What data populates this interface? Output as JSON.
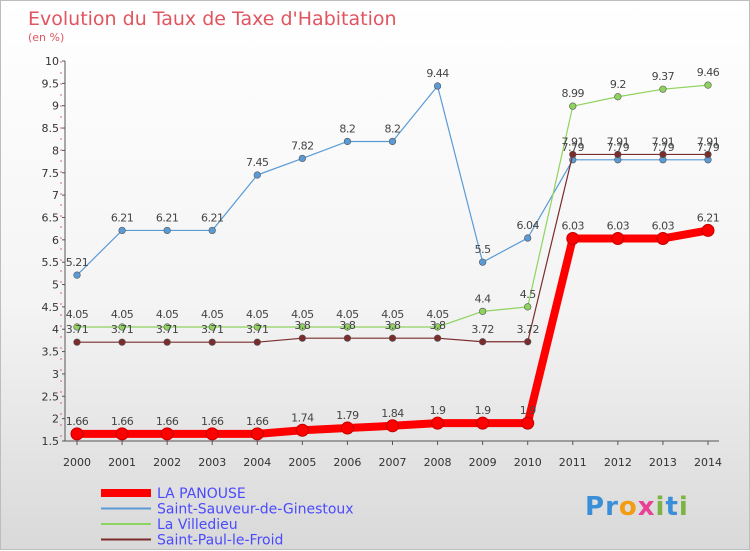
{
  "chart_data": {
    "type": "line",
    "title": "Evolution du Taux de Taxe d'Habitation",
    "subtitle": "(en %)",
    "x": [
      "2000",
      "2001",
      "2002",
      "2003",
      "2004",
      "2005",
      "2006",
      "2007",
      "2008",
      "2009",
      "2010",
      "2011",
      "2012",
      "2013",
      "2014"
    ],
    "ylim": [
      1.5,
      10
    ],
    "yticks": [
      "1.5",
      "2",
      "2.5",
      "3",
      "3.5",
      "4",
      "4.5",
      "5",
      "5.5",
      "6",
      "6.5",
      "7",
      "7.5",
      "8",
      "8.5",
      "9",
      "9.5",
      "10"
    ],
    "grid": false,
    "legend_position": "bottom-left",
    "series": [
      {
        "name": "LA PANOUSE",
        "color": "#ff0000",
        "values": [
          1.66,
          1.66,
          1.66,
          1.66,
          1.66,
          1.74,
          1.79,
          1.84,
          1.9,
          1.9,
          1.9,
          6.03,
          6.03,
          6.03,
          6.21
        ],
        "labels": [
          "1.66",
          "1.66",
          "1.66",
          "1.66",
          "1.66",
          "1.74",
          "1.79",
          "1.84",
          "1.9",
          "1.9",
          "1.9",
          "6.03",
          "6.03",
          "6.03",
          "6.21"
        ]
      },
      {
        "name": "Saint-Sauveur-de-Ginestoux",
        "color": "#5b9bd5",
        "values": [
          5.21,
          6.21,
          6.21,
          6.21,
          7.45,
          7.82,
          8.2,
          8.2,
          9.44,
          5.5,
          6.04,
          7.79,
          7.79,
          7.79,
          7.79
        ],
        "labels": [
          "5.21",
          "6.21",
          "6.21",
          "6.21",
          "7.45",
          "7.82",
          "8.2",
          "8.2",
          "9.44",
          "5.5",
          "6.04",
          "7.79",
          "7.79",
          "7.79",
          "7.79"
        ]
      },
      {
        "name": "La Villedieu",
        "color": "#8fd35f",
        "values": [
          4.05,
          4.05,
          4.05,
          4.05,
          4.05,
          4.05,
          4.05,
          4.05,
          4.05,
          4.4,
          4.5,
          8.99,
          9.2,
          9.37,
          9.46
        ],
        "labels": [
          "4.05",
          "4.05",
          "4.05",
          "4.05",
          "4.05",
          "4.05",
          "4.05",
          "4.05",
          "4.05",
          "4.4",
          "4.5",
          "8.99",
          "9.2",
          "9.37",
          "9.46"
        ]
      },
      {
        "name": "Saint-Paul-le-Froid",
        "color": "#7b2d2d",
        "values": [
          3.71,
          3.71,
          3.71,
          3.71,
          3.71,
          3.8,
          3.8,
          3.8,
          3.8,
          3.72,
          3.72,
          7.91,
          7.91,
          7.91,
          7.91
        ],
        "labels": [
          "3.71",
          "3.71",
          "3.71",
          "3.71",
          "3.71",
          "3.8",
          "3.8",
          "3.8",
          "3.8",
          "3.72",
          "3.72",
          "7.91",
          "7.91",
          "7.91",
          "7.91"
        ]
      }
    ]
  },
  "legend_text_color": "#4a4aff",
  "logo": {
    "letters": [
      "P",
      "r",
      "o",
      "x",
      "i",
      "t",
      "i"
    ],
    "colors": [
      "#3b8fd9",
      "#3b8fd9",
      "#f39c12",
      "#e84393",
      "#7cb342",
      "#3b8fd9",
      "#7cb342"
    ]
  }
}
